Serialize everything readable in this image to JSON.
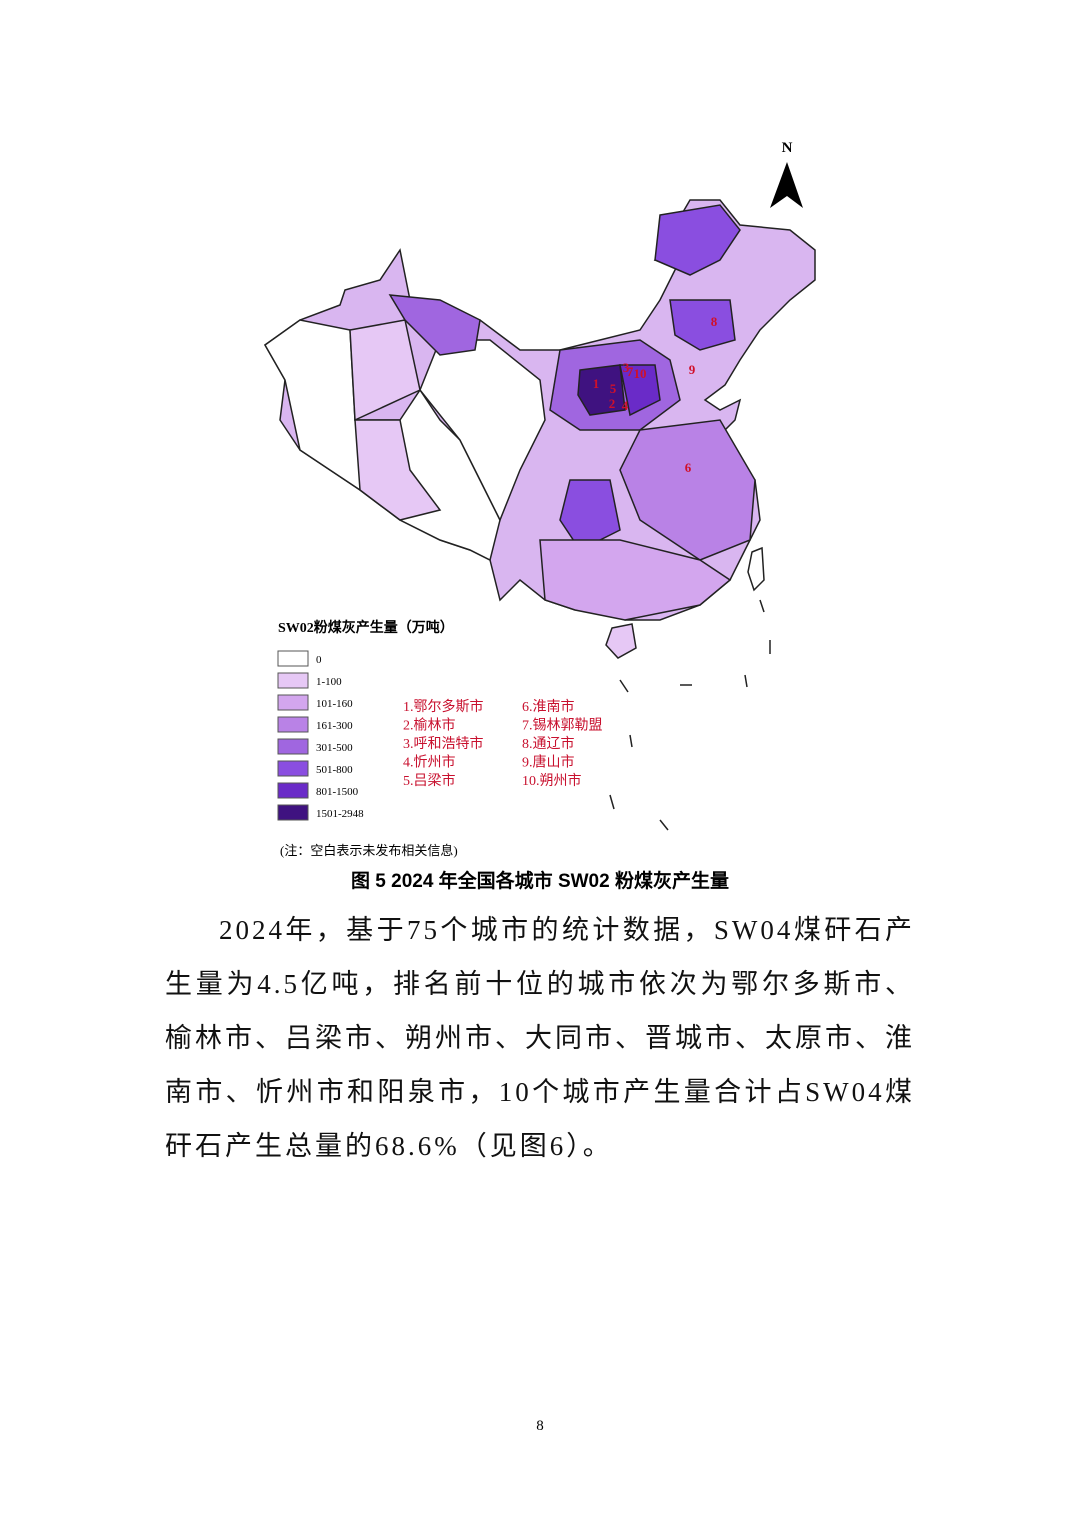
{
  "figure": {
    "north": "N",
    "legend_title": "SW02粉煤灰产生量（万吨）",
    "legend": [
      {
        "label": "0",
        "color": "#ffffff"
      },
      {
        "label": "1-100",
        "color": "#e6c8f5"
      },
      {
        "label": "101-160",
        "color": "#d3a6ee"
      },
      {
        "label": "161-300",
        "color": "#b982e6"
      },
      {
        "label": "301-500",
        "color": "#a066e0"
      },
      {
        "label": "501-800",
        "color": "#8a4ee0"
      },
      {
        "label": "801-1500",
        "color": "#6a2bc8"
      },
      {
        "label": "1501-2948",
        "color": "#3f1280"
      }
    ],
    "cities": [
      "1.鄂尔多斯市",
      "2.榆林市",
      "3.呼和浩特市",
      "4.忻州市",
      "5.吕梁市",
      "6.淮南市",
      "7.锡林郭勒盟",
      "8.通辽市",
      "9.唐山市",
      "10.朔州市"
    ],
    "map_labels": [
      "1",
      "2",
      "3",
      "4",
      "5",
      "6",
      "7",
      "8",
      "9",
      "10"
    ],
    "note": "(注：空白表示未发布相关信息)",
    "caption": "图 5 2024 年全国各城市 SW02 粉煤灰产生量"
  },
  "body": {
    "paragraph": "2024年，基于75个城市的统计数据，SW04煤矸石产生量为4.5亿吨，排名前十位的城市依次为鄂尔多斯市、榆林市、吕梁市、朔州市、大同市、晋城市、太原市、淮南市、忻州市和阳泉市，10个城市产生量合计占SW04煤矸石产生总量的68.6%（见图6）。"
  },
  "footer": {
    "page": "8"
  }
}
